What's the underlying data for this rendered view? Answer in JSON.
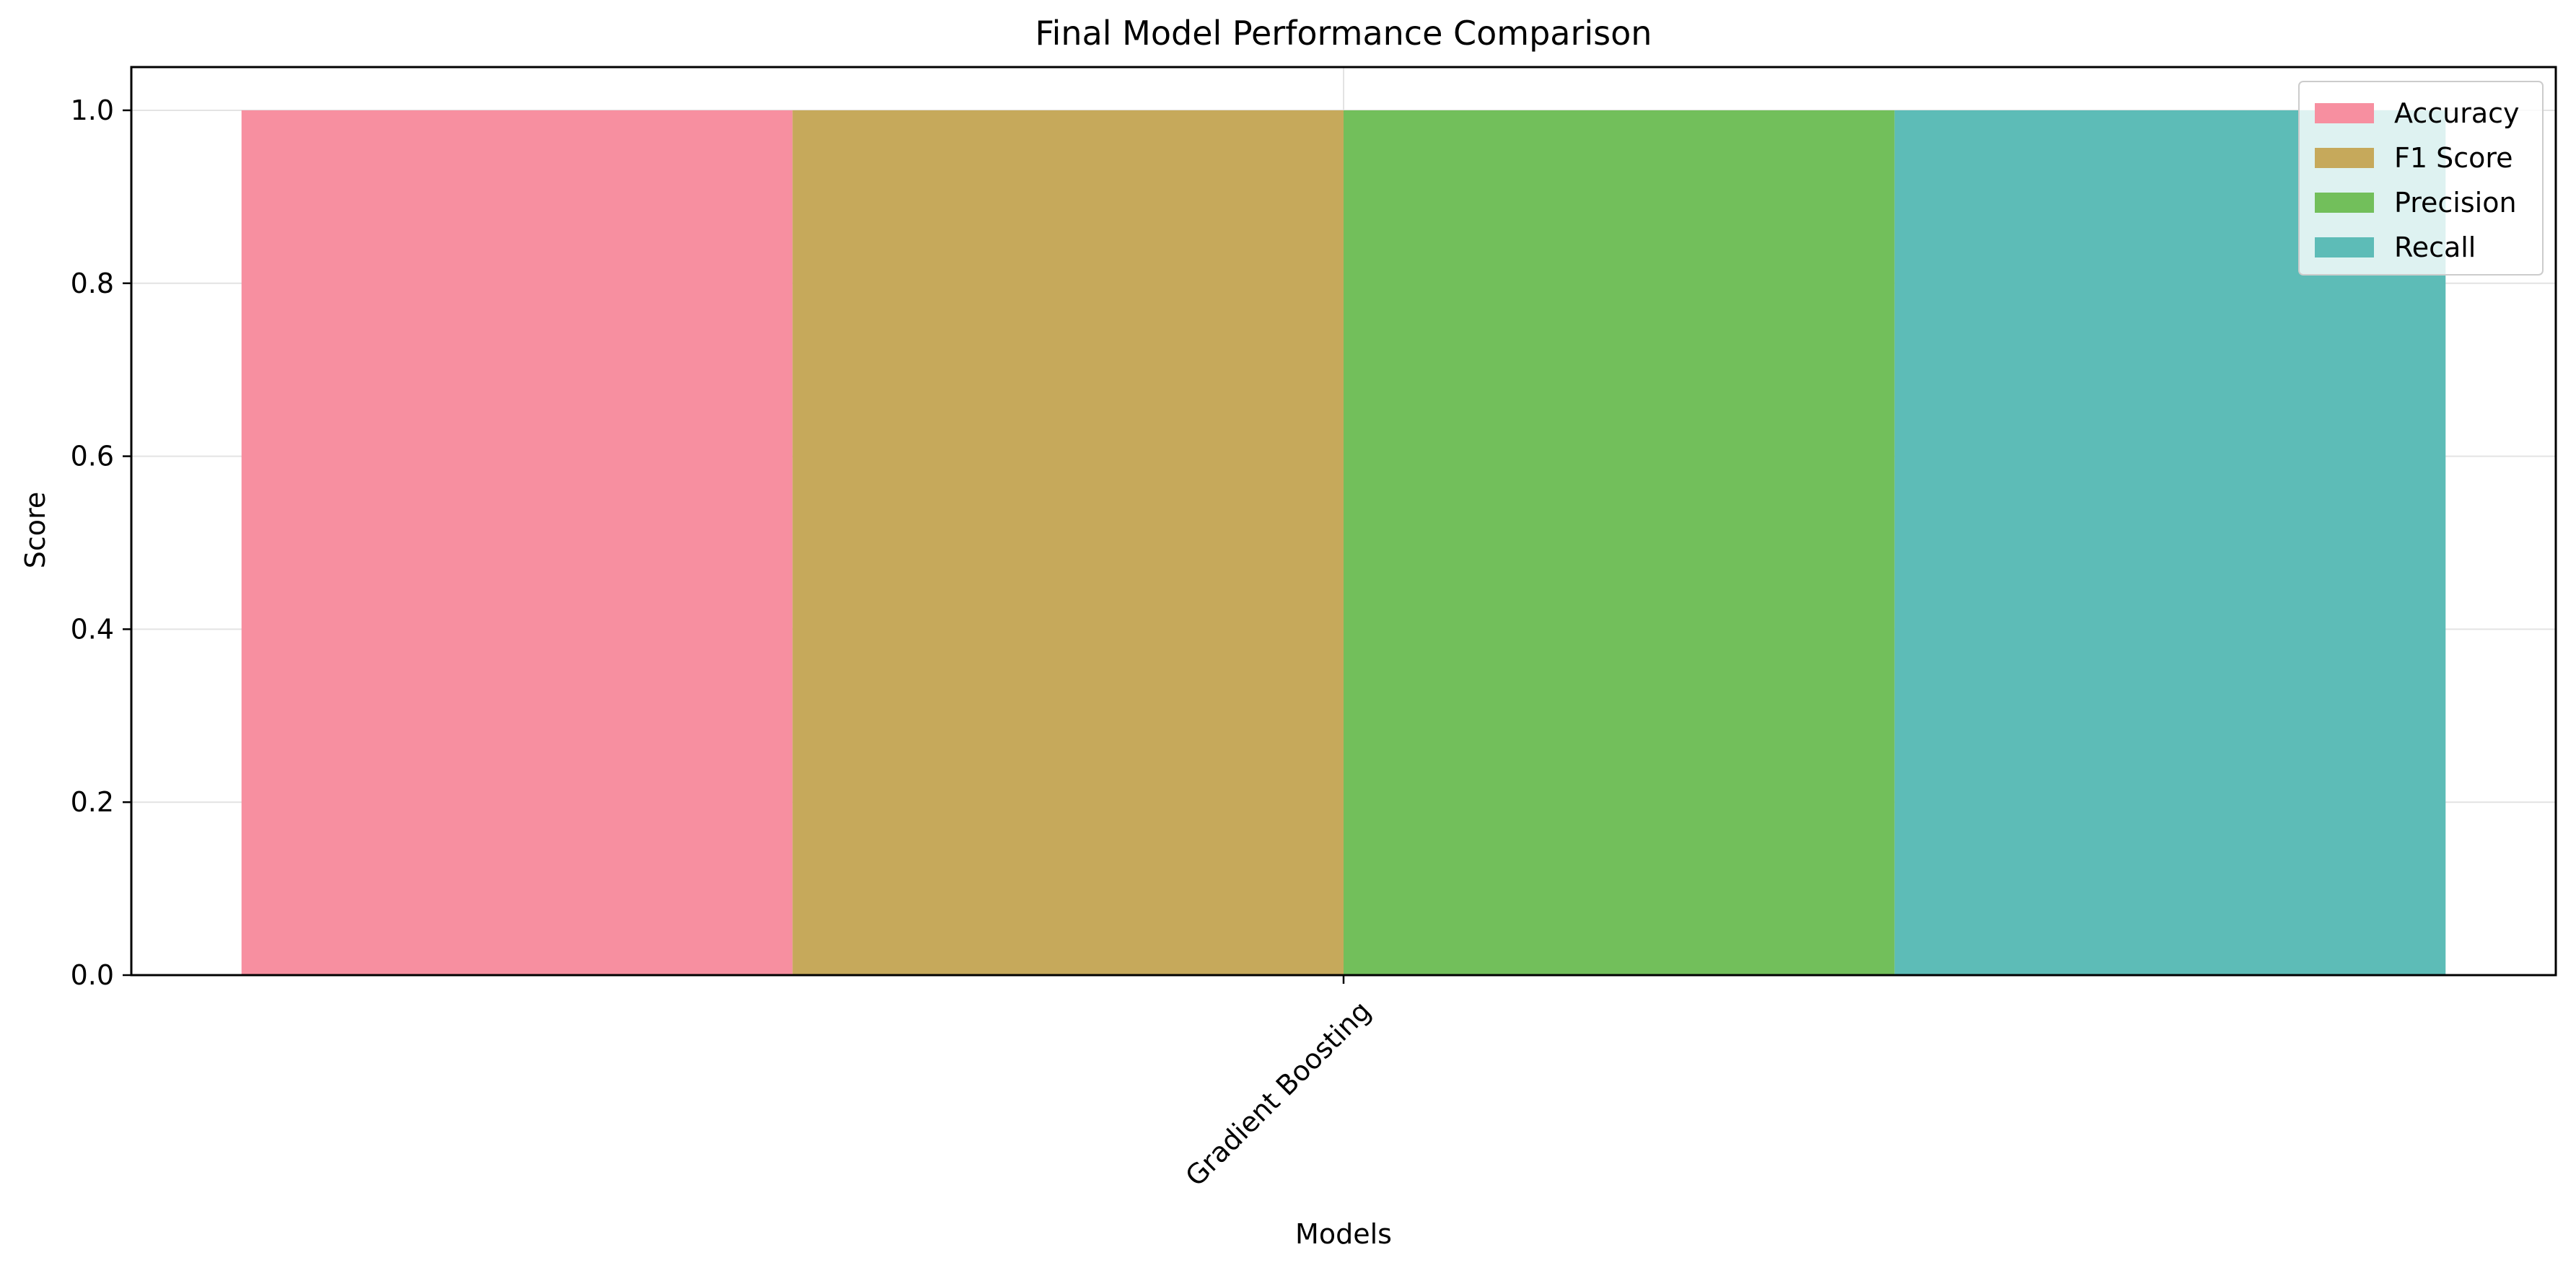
{
  "chart_data": {
    "type": "bar",
    "title": "Final Model Performance Comparison",
    "xlabel": "Models",
    "ylabel": "Score",
    "categories": [
      "Gradient Boosting"
    ],
    "series": [
      {
        "name": "Accuracy",
        "values": [
          1.0
        ],
        "color": "#f78fa0"
      },
      {
        "name": "F1 Score",
        "values": [
          1.0
        ],
        "color": "#c6a95b"
      },
      {
        "name": "Precision",
        "values": [
          1.0
        ],
        "color": "#72bf5b"
      },
      {
        "name": "Recall",
        "values": [
          1.0
        ],
        "color": "#5dbcb7"
      }
    ],
    "ylim": [
      0,
      1.05
    ],
    "yticks": [
      "0.0",
      "0.2",
      "0.4",
      "0.6",
      "0.8",
      "1.0"
    ],
    "grid": true,
    "legend_position": "top-right"
  }
}
